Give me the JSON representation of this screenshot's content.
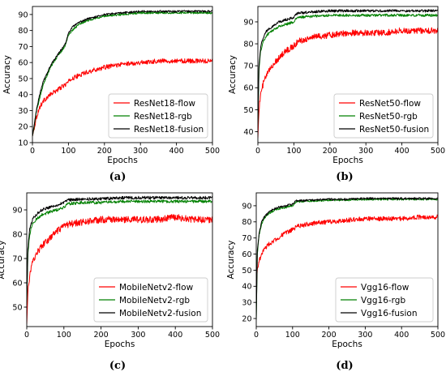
{
  "chart_data": [
    {
      "type": "line",
      "panel": "(a)",
      "xlabel": "Epochs",
      "ylabel": "Accuracy",
      "xlim": [
        0,
        500
      ],
      "ylim": [
        10,
        95
      ],
      "xticks": [
        0,
        100,
        200,
        300,
        400,
        500
      ],
      "yticks": [
        10,
        20,
        30,
        40,
        50,
        60,
        70,
        80,
        90
      ],
      "legend_position": "lower-right",
      "series": [
        {
          "name": "ResNet18-flow",
          "color": "#ff0000",
          "x": [
            0,
            5,
            10,
            20,
            30,
            50,
            70,
            90,
            100,
            110,
            130,
            150,
            200,
            250,
            300,
            350,
            400,
            450,
            500
          ],
          "y": [
            14,
            19,
            25,
            32,
            36,
            40,
            43,
            46,
            48,
            50,
            52,
            54,
            57,
            59,
            60,
            61,
            61,
            61,
            61
          ]
        },
        {
          "name": "ResNet18-rgb",
          "color": "#008000",
          "x": [
            0,
            5,
            10,
            20,
            30,
            50,
            70,
            90,
            100,
            110,
            130,
            150,
            200,
            250,
            300,
            350,
            400,
            450,
            500
          ],
          "y": [
            14,
            20,
            28,
            38,
            46,
            57,
            64,
            70,
            77,
            80,
            84,
            86,
            89,
            90,
            91,
            91,
            91,
            91,
            91
          ]
        },
        {
          "name": "ResNet18-fusion",
          "color": "#000000",
          "x": [
            0,
            5,
            10,
            20,
            30,
            50,
            70,
            90,
            100,
            110,
            130,
            150,
            200,
            250,
            300,
            350,
            400,
            450,
            500
          ],
          "y": [
            14,
            21,
            29,
            40,
            48,
            58,
            65,
            71,
            78,
            82,
            85,
            87,
            90,
            91,
            92,
            92,
            92,
            92,
            92
          ]
        }
      ]
    },
    {
      "type": "line",
      "panel": "(b)",
      "xlabel": "Epochs",
      "ylabel": "Accuracy",
      "xlim": [
        0,
        500
      ],
      "ylim": [
        35,
        97
      ],
      "xticks": [
        0,
        100,
        200,
        300,
        400,
        500
      ],
      "yticks": [
        40,
        50,
        60,
        70,
        80,
        90
      ],
      "legend_position": "lower-right",
      "series": [
        {
          "name": "ResNet50-flow",
          "color": "#ff0000",
          "x": [
            0,
            3,
            8,
            15,
            25,
            40,
            60,
            80,
            100,
            110,
            150,
            200,
            250,
            300,
            350,
            400,
            450,
            500
          ],
          "y": [
            37,
            50,
            57,
            62,
            66,
            70,
            74,
            77,
            79,
            81,
            83,
            84,
            85,
            85,
            85,
            86,
            86,
            86
          ]
        },
        {
          "name": "ResNet50-rgb",
          "color": "#008000",
          "x": [
            0,
            3,
            8,
            15,
            25,
            40,
            60,
            80,
            100,
            110,
            150,
            200,
            250,
            300,
            350,
            400,
            450,
            500
          ],
          "y": [
            42,
            68,
            77,
            81,
            84,
            86,
            88,
            89,
            90,
            92,
            92.5,
            93,
            93,
            93,
            93,
            93,
            93,
            93
          ]
        },
        {
          "name": "ResNet50-fusion",
          "color": "#000000",
          "x": [
            0,
            3,
            8,
            15,
            25,
            40,
            60,
            80,
            100,
            110,
            150,
            200,
            250,
            300,
            350,
            400,
            450,
            500
          ],
          "y": [
            42,
            70,
            79,
            83,
            86,
            88,
            90,
            91,
            92,
            94,
            94.5,
            95,
            95,
            95,
            95,
            95,
            95,
            95
          ]
        }
      ]
    },
    {
      "type": "line",
      "panel": "(c)",
      "xlabel": "Epochs",
      "ylabel": "Accuracy",
      "xlim": [
        0,
        500
      ],
      "ylim": [
        42,
        97
      ],
      "xticks": [
        0,
        100,
        200,
        300,
        400,
        500
      ],
      "yticks": [
        50,
        60,
        70,
        80,
        90
      ],
      "legend_position": "lower-right",
      "series": [
        {
          "name": "MobileNetv2-flow",
          "color": "#ff0000",
          "x": [
            0,
            3,
            8,
            15,
            25,
            40,
            60,
            80,
            100,
            110,
            150,
            200,
            250,
            300,
            350,
            400,
            450,
            500
          ],
          "y": [
            43,
            56,
            63,
            68,
            72,
            75,
            78,
            81,
            83,
            84,
            85,
            86,
            86,
            86,
            86,
            87,
            86,
            86
          ]
        },
        {
          "name": "MobileNetv2-rgb",
          "color": "#008000",
          "x": [
            0,
            3,
            8,
            15,
            25,
            40,
            60,
            80,
            100,
            110,
            150,
            200,
            250,
            300,
            350,
            400,
            450,
            500
          ],
          "y": [
            51,
            72,
            80,
            84,
            86,
            88,
            89,
            90,
            91,
            92.5,
            93,
            93,
            93.5,
            93.5,
            93.5,
            93.5,
            93.5,
            93.5
          ]
        },
        {
          "name": "MobileNetv2-fusion",
          "color": "#000000",
          "x": [
            0,
            3,
            8,
            15,
            25,
            40,
            60,
            80,
            100,
            110,
            150,
            200,
            250,
            300,
            350,
            400,
            450,
            500
          ],
          "y": [
            52,
            74,
            82,
            86,
            88,
            90,
            91,
            92,
            93,
            94,
            94.5,
            94.5,
            95,
            95,
            95,
            95,
            95,
            95
          ]
        }
      ]
    },
    {
      "type": "line",
      "panel": "(d)",
      "xlabel": "Epochs",
      "ylabel": "Accuracy",
      "xlim": [
        0,
        500
      ],
      "ylim": [
        15,
        98
      ],
      "xticks": [
        0,
        100,
        200,
        300,
        400,
        500
      ],
      "yticks": [
        20,
        30,
        40,
        50,
        60,
        70,
        80,
        90
      ],
      "legend_position": "lower-right",
      "series": [
        {
          "name": "Vgg16-flow",
          "color": "#ff0000",
          "x": [
            0,
            3,
            8,
            15,
            25,
            40,
            60,
            80,
            100,
            110,
            150,
            200,
            250,
            300,
            350,
            400,
            450,
            500
          ],
          "y": [
            40,
            50,
            56,
            60,
            64,
            67,
            70,
            73,
            75,
            77,
            79,
            80,
            81,
            82,
            82,
            82,
            83,
            83
          ]
        },
        {
          "name": "Vgg16-rgb",
          "color": "#008000",
          "x": [
            0,
            3,
            8,
            15,
            25,
            40,
            60,
            80,
            100,
            110,
            150,
            200,
            250,
            300,
            350,
            400,
            450,
            500
          ],
          "y": [
            19,
            60,
            72,
            79,
            83,
            86,
            88,
            89,
            90,
            92.5,
            93,
            93.5,
            93.5,
            94,
            94,
            94,
            94,
            94
          ]
        },
        {
          "name": "Vgg16-fusion",
          "color": "#000000",
          "x": [
            0,
            3,
            8,
            15,
            25,
            40,
            60,
            80,
            100,
            110,
            150,
            200,
            250,
            300,
            350,
            400,
            450,
            500
          ],
          "y": [
            19,
            62,
            73,
            80,
            84,
            87,
            89,
            90,
            91,
            93,
            93.5,
            94,
            94,
            94.5,
            94.5,
            94.5,
            94.5,
            94.5
          ]
        }
      ]
    }
  ]
}
